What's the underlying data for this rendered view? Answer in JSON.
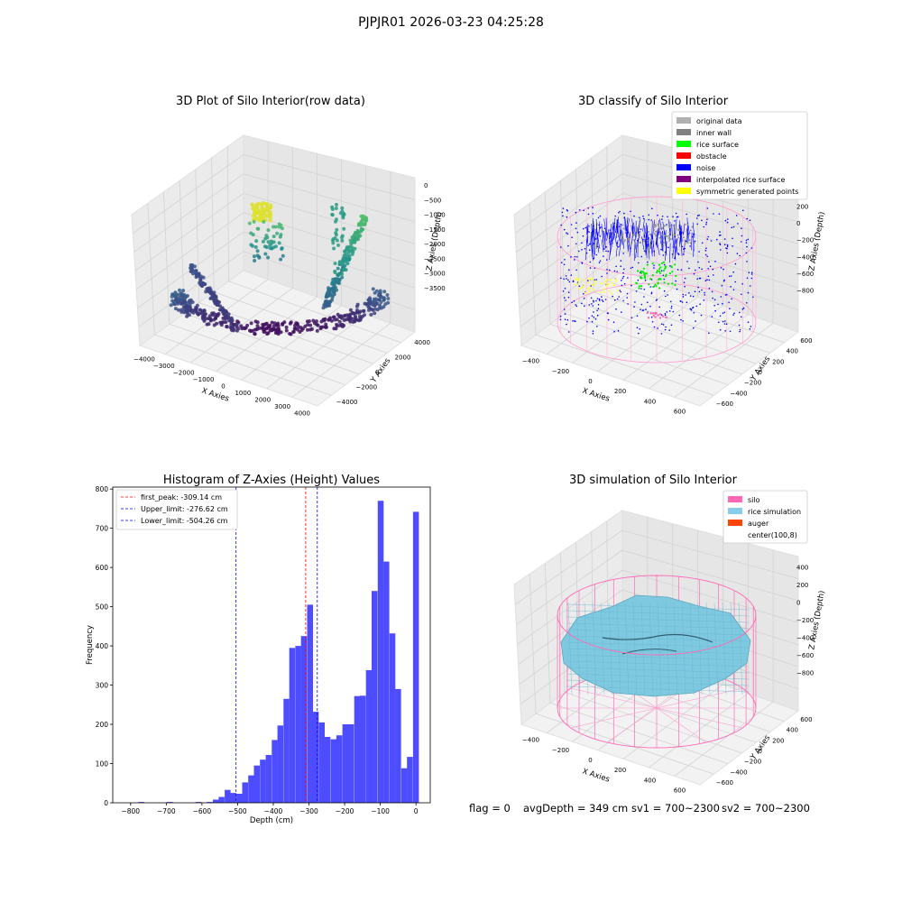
{
  "suptitle": "PJPJR01 2026-03-23 04:25:28",
  "footer": {
    "flag": "flag = 0",
    "avg_depth": "avgDepth = 349 cm",
    "sv1": "sv1 = 700~2300",
    "sv2": "sv2 = 700~2300"
  },
  "chart_data": [
    {
      "type": "scatter",
      "title": "3D Plot of Silo Interior(row data)",
      "xlabel": "X Axies",
      "ylabel": "Y Axies",
      "zlabel": "Z Axies (Depth)",
      "x_ticks": [
        "−4000",
        "−3000",
        "−2000",
        "−1000",
        "0",
        "1000",
        "2000",
        "3000",
        "4000"
      ],
      "y_ticks": [
        "−4000",
        "−2000",
        "0",
        "2000",
        "4000"
      ],
      "z_ticks": [
        "0",
        "−500",
        "−1000",
        "−1500",
        "−2000",
        "−2500",
        "−3000",
        "−3500"
      ],
      "colormap": "viridis"
    },
    {
      "type": "scatter",
      "title": "3D classify of Silo Interior",
      "xlabel": "X Axies",
      "ylabel": "Y Axies",
      "zlabel": "Z Axies (Depth)",
      "x_ticks": [
        "−400",
        "−200",
        "0",
        "200",
        "400",
        "600"
      ],
      "y_ticks": [
        "−600",
        "−400",
        "−200",
        "0",
        "200",
        "400",
        "600"
      ],
      "z_ticks": [
        "200",
        "0",
        "−200",
        "−400",
        "−600",
        "−800"
      ],
      "legend": [
        {
          "label": "original data",
          "color": "#b0b0b0"
        },
        {
          "label": "inner wall",
          "color": "#808080"
        },
        {
          "label": "rice surface",
          "color": "#00ff00"
        },
        {
          "label": "obstacle",
          "color": "#ff0000"
        },
        {
          "label": "noise",
          "color": "#0000ff"
        },
        {
          "label": "interpolated rice surface",
          "color": "#800080"
        },
        {
          "label": "symmetric generated points",
          "color": "#ffff00"
        }
      ],
      "legend_position": "top-right"
    },
    {
      "type": "bar",
      "title": "Histogram of Z-Axies (Height) Values",
      "xlabel": "Depth (cm)",
      "ylabel": "Frequency",
      "xlim": [
        -850,
        40
      ],
      "ylim": [
        0,
        805
      ],
      "x_ticks": [
        -800,
        -700,
        -600,
        -500,
        -400,
        -300,
        -200,
        -100,
        0
      ],
      "y_ticks": [
        0,
        100,
        200,
        300,
        400,
        500,
        600,
        700,
        800
      ],
      "bin_width": 16.5,
      "bins": [
        {
          "x": -770,
          "value": 2
        },
        {
          "x": -690,
          "value": 2
        },
        {
          "x": -610,
          "value": 2
        },
        {
          "x": -578,
          "value": 2
        },
        {
          "x": -561,
          "value": 8
        },
        {
          "x": -545,
          "value": 15
        },
        {
          "x": -528,
          "value": 33
        },
        {
          "x": -512,
          "value": 25
        },
        {
          "x": -495,
          "value": 23
        },
        {
          "x": -479,
          "value": 52
        },
        {
          "x": -462,
          "value": 70
        },
        {
          "x": -446,
          "value": 95
        },
        {
          "x": -429,
          "value": 110
        },
        {
          "x": -413,
          "value": 122
        },
        {
          "x": -396,
          "value": 160
        },
        {
          "x": -380,
          "value": 197
        },
        {
          "x": -363,
          "value": 265
        },
        {
          "x": -347,
          "value": 395
        },
        {
          "x": -330,
          "value": 400
        },
        {
          "x": -314,
          "value": 425
        },
        {
          "x": -297,
          "value": 505
        },
        {
          "x": -281,
          "value": 232
        },
        {
          "x": -264,
          "value": 205
        },
        {
          "x": -248,
          "value": 168
        },
        {
          "x": -231,
          "value": 162
        },
        {
          "x": -215,
          "value": 172
        },
        {
          "x": -198,
          "value": 200
        },
        {
          "x": -182,
          "value": 200
        },
        {
          "x": -165,
          "value": 272
        },
        {
          "x": -149,
          "value": 273
        },
        {
          "x": -132,
          "value": 338
        },
        {
          "x": -116,
          "value": 540
        },
        {
          "x": -99,
          "value": 770
        },
        {
          "x": -83,
          "value": 615
        },
        {
          "x": -66,
          "value": 432
        },
        {
          "x": -50,
          "value": 290
        },
        {
          "x": -33,
          "value": 88
        },
        {
          "x": -17,
          "value": 117
        },
        {
          "x": 0,
          "value": 742
        }
      ],
      "lines": [
        {
          "label": "first_peak: -309.14 cm",
          "x": -309.14,
          "color": "#ff0000"
        },
        {
          "label": "Upper_limit: -276.62 cm",
          "x": -276.62,
          "color": "#0000ff"
        },
        {
          "label": "Lower_limit: -504.26 cm",
          "x": -504.26,
          "color": "#0000ff"
        }
      ],
      "bar_color": "#4d4dff",
      "legend_position": "top-left"
    },
    {
      "type": "surface",
      "title": "3D simulation of Silo Interior",
      "xlabel": "X Axies",
      "ylabel": "Y Axies",
      "zlabel": "Z Axies (Depth)",
      "x_ticks": [
        "−400",
        "−200",
        "0",
        "200",
        "400",
        "600"
      ],
      "y_ticks": [
        "−600",
        "−400",
        "−200",
        "0",
        "200",
        "400",
        "600"
      ],
      "z_ticks": [
        "400",
        "200",
        "0",
        "−200",
        "−400",
        "−600",
        "−800"
      ],
      "legend": [
        {
          "label": "silo",
          "color": "#ff69b4"
        },
        {
          "label": "rice simulation",
          "color": "#87ceeb"
        },
        {
          "label": "auger",
          "color": "#ff4500"
        },
        {
          "label": "center(100,8)",
          "color": "none"
        }
      ],
      "legend_position": "top-right"
    }
  ]
}
